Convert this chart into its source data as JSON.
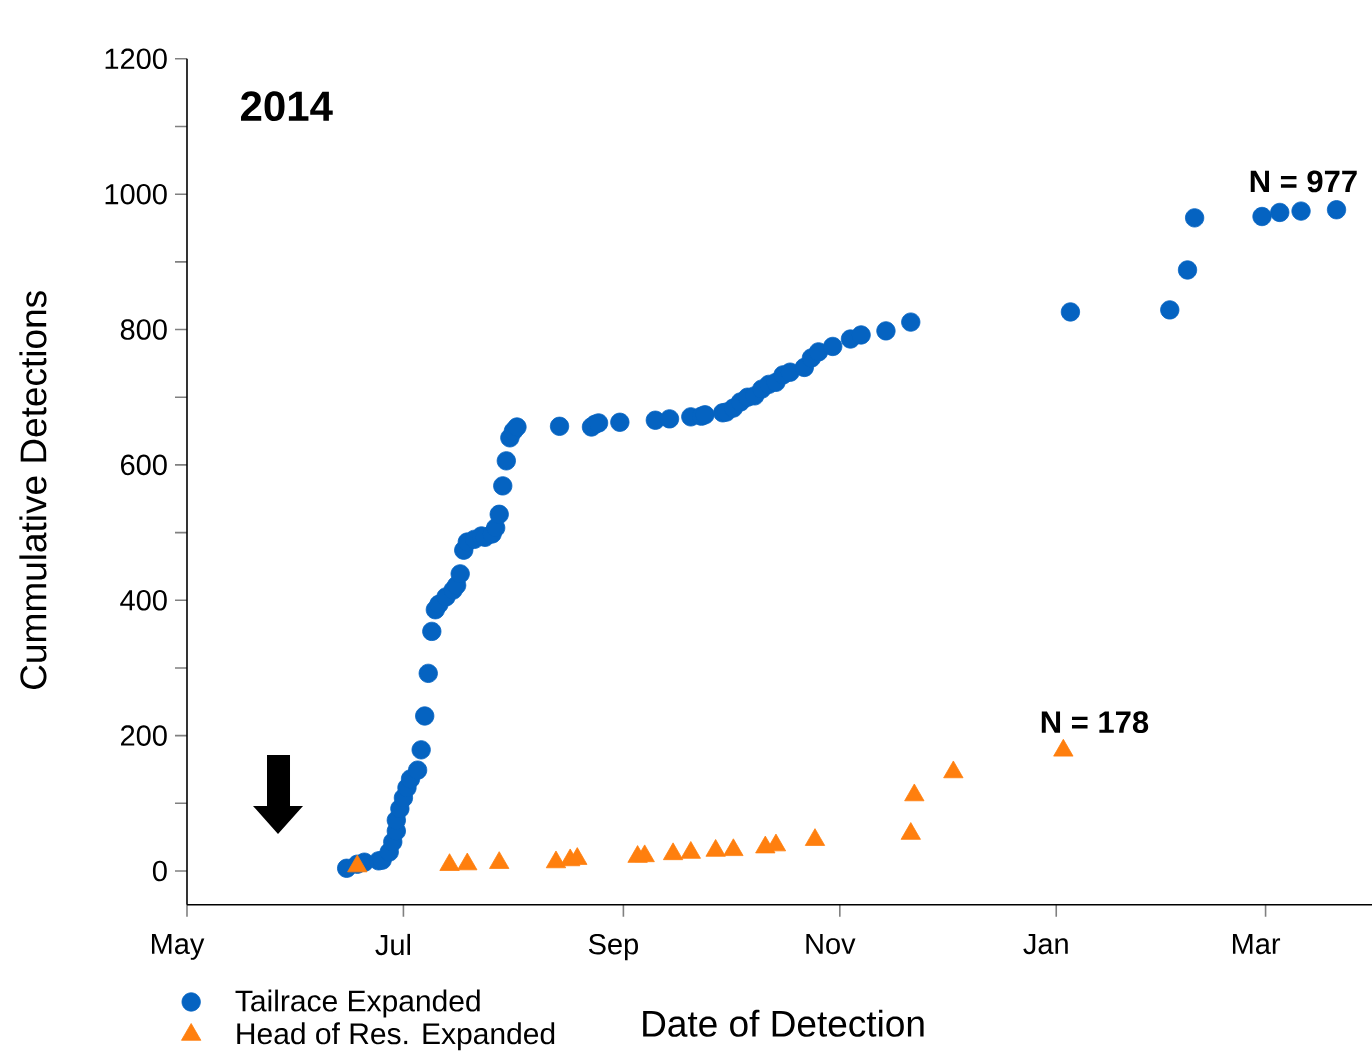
{
  "chart_data": {
    "type": "scatter",
    "xlabel": "Date of Detection",
    "ylabel": "Cummulative Detections",
    "xlim": [
      "2014-05-01",
      "2015-03-31"
    ],
    "ylim": [
      -50,
      1200
    ],
    "xticks": [
      {
        "value": "2014-05-01",
        "label": "May"
      },
      {
        "value": "2014-07-01",
        "label": "Jul"
      },
      {
        "value": "2014-09-01",
        "label": "Sep"
      },
      {
        "value": "2014-11-01",
        "label": "Nov"
      },
      {
        "value": "2015-01-01",
        "label": "Jan"
      },
      {
        "value": "2015-03-01",
        "label": "Mar"
      }
    ],
    "yticks": [
      0,
      {
        "value": 100,
        "label": null
      },
      200,
      {
        "value": 300,
        "label": null
      },
      400,
      {
        "value": 500,
        "label": null
      },
      600,
      {
        "value": 700,
        "label": null
      },
      800,
      {
        "value": 900,
        "label": null
      },
      1000,
      {
        "value": 1100,
        "label": null
      },
      1200
    ],
    "legend": "bottom left",
    "grid": false,
    "annotations": [
      "2014",
      {
        "text": "N = 977",
        "x": "2015-03-21",
        "y": 977
      },
      {
        "text": "N = 178",
        "x": "2015-01-03",
        "y": 178
      }
    ],
    "series": [
      {
        "name": "Tailrace Expanded",
        "color": "#0563c1",
        "marker": "circle",
        "x": [
          "2014-06-15",
          "2014-06-18",
          "2014-06-20",
          "2014-06-24",
          "2014-06-25",
          "2014-06-27",
          "2014-06-28",
          "2014-06-29",
          "2014-06-29",
          "2014-06-30",
          "2014-07-01",
          "2014-07-02",
          "2014-07-03",
          "2014-07-05",
          "2014-07-06",
          "2014-07-07",
          "2014-07-08",
          "2014-07-09",
          "2014-07-10",
          "2014-07-11",
          "2014-07-13",
          "2014-07-15",
          "2014-07-16",
          "2014-07-17",
          "2014-07-18",
          "2014-07-19",
          "2014-07-21",
          "2014-07-23",
          "2014-07-24",
          "2014-07-26",
          "2014-07-27",
          "2014-07-28",
          "2014-07-29",
          "2014-07-30",
          "2014-07-31",
          "2014-08-01",
          "2014-08-02",
          "2014-08-14",
          "2014-08-23",
          "2014-08-24",
          "2014-08-25",
          "2014-08-31",
          "2014-09-10",
          "2014-09-14",
          "2014-09-20",
          "2014-09-23",
          "2014-09-24",
          "2014-09-29",
          "2014-09-30",
          "2014-10-02",
          "2014-10-04",
          "2014-10-06",
          "2014-10-08",
          "2014-10-10",
          "2014-10-12",
          "2014-10-14",
          "2014-10-16",
          "2014-10-18",
          "2014-10-22",
          "2014-10-24",
          "2014-10-26",
          "2014-10-30",
          "2014-11-04",
          "2014-11-07",
          "2014-11-14",
          "2014-11-21",
          "2015-01-05",
          "2015-02-02",
          "2015-02-07",
          "2015-02-09",
          "2015-02-28",
          "2015-03-05",
          "2015-03-11",
          "2015-03-21"
        ],
        "values": [
          4,
          10,
          13,
          15,
          16,
          28,
          43,
          59,
          75,
          92,
          108,
          123,
          136,
          149,
          179,
          229,
          292,
          354,
          386,
          394,
          405,
          415,
          422,
          439,
          474,
          486,
          490,
          495,
          493,
          498,
          507,
          527,
          569,
          606,
          640,
          650,
          656,
          657,
          656,
          660,
          662,
          663,
          666,
          668,
          671,
          672,
          674,
          677,
          678,
          684,
          693,
          700,
          702,
          712,
          719,
          722,
          733,
          737,
          744,
          758,
          767,
          775,
          786,
          792,
          798,
          811,
          826,
          829,
          888,
          965,
          967,
          973,
          975,
          977
        ]
      },
      {
        "name": "Head of Res. Expanded",
        "color": "#ff7f0e",
        "marker": "triangle",
        "x": [
          "2014-06-18",
          "2014-07-14",
          "2014-07-19",
          "2014-07-28",
          "2014-08-13",
          "2014-08-17",
          "2014-08-19",
          "2014-09-05",
          "2014-09-07",
          "2014-09-15",
          "2014-09-20",
          "2014-09-27",
          "2014-10-02",
          "2014-10-11",
          "2014-10-14",
          "2014-10-25",
          "2014-11-21",
          "2014-11-22",
          "2014-12-03",
          "2015-01-03"
        ],
        "values": [
          7,
          9,
          10,
          12,
          13,
          16,
          18,
          21,
          22,
          25,
          27,
          30,
          31,
          35,
          38,
          46,
          55,
          112,
          146,
          178
        ]
      }
    ]
  }
}
